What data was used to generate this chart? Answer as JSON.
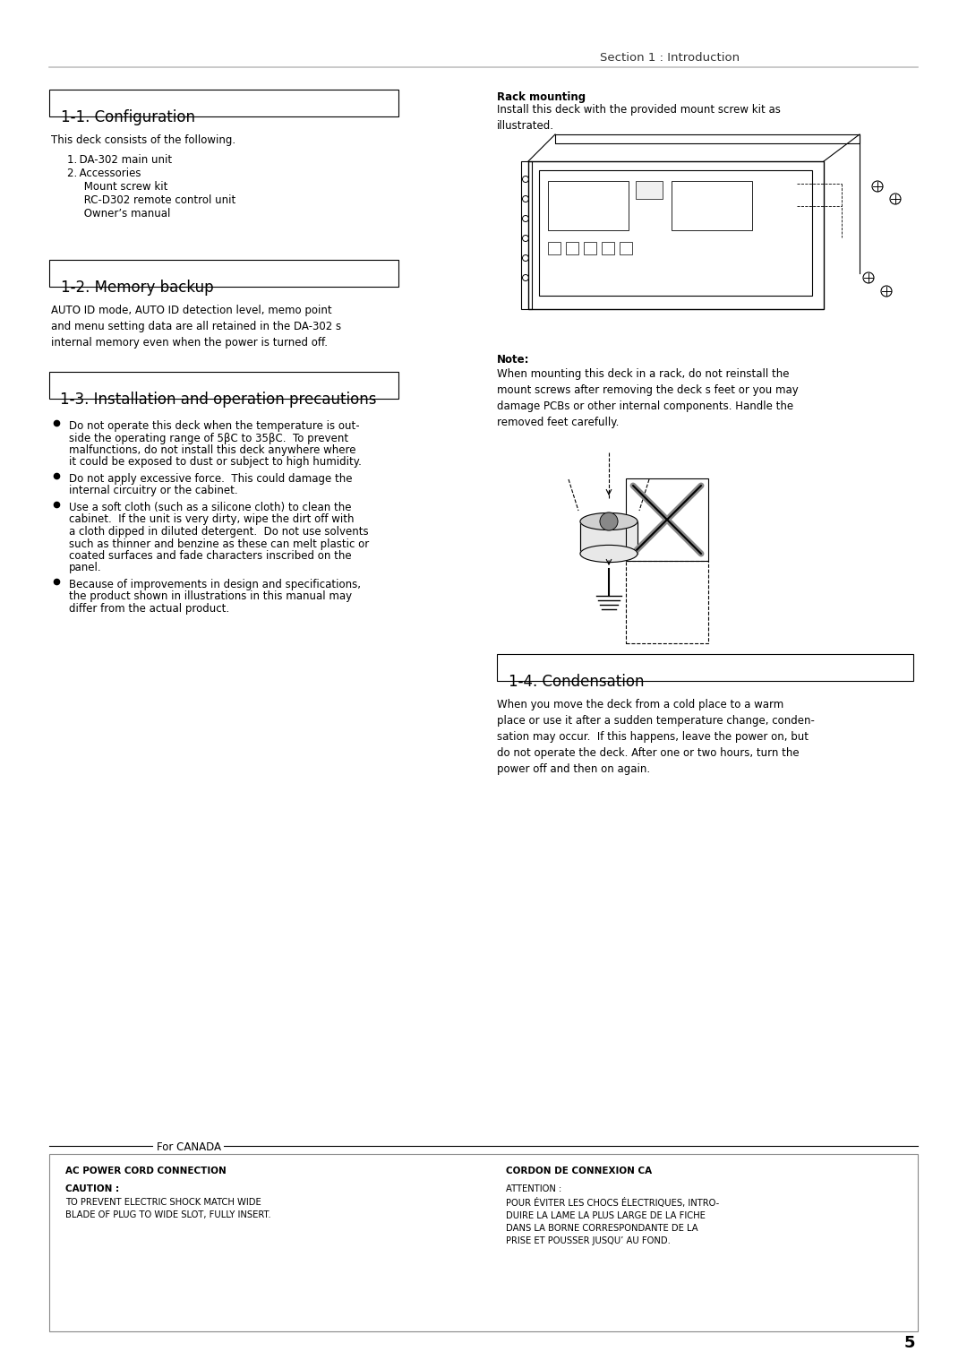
{
  "page_bg": "#ffffff",
  "header_text": "Section 1 : Introduction",
  "header_fontsize": 9.5,
  "page_number": "5",
  "page_number_fontsize": 13,
  "section_title_fontsize": 12,
  "sec1_title": "1-1. Configuration",
  "sec1_body": "This deck consists of the following.",
  "sec1_list": [
    "1. DA-302 main unit",
    "2. Accessories",
    "     Mount screw kit",
    "     RC-D302 remote control unit",
    "     Owner’s manual"
  ],
  "sec2_title": "1-2. Memory backup",
  "sec2_body": "AUTO ID mode, AUTO ID detection level, memo point\nand menu setting data are all retained in the DA-302 s\ninternal memory even when the power is turned off.",
  "sec3_title": "1-3. Installation and operation precautions",
  "sec3_bullets": [
    "Do not operate this deck when the temperature is out-\nside the operating range of 5βC to 35βC.  To prevent\nmalfunctions, do not install this deck anywhere where\nit could be exposed to dust or subject to high humidity.",
    "Do not apply excessive force.  This could damage the\ninternal circuitry or the cabinet.",
    "Use a soft cloth (such as a silicone cloth) to clean the\ncabinet.  If the unit is very dirty, wipe the dirt off with\na cloth dipped in diluted detergent.  Do not use solvents\nsuch as thinner and benzine as these can melt plastic or\ncoated surfaces and fade characters inscribed on the\npanel.",
    "Because of improvements in design and specifications,\nthe product shown in illustrations in this manual may\ndiffer from the actual product."
  ],
  "rack_title": "Rack mounting",
  "rack_body": "Install this deck with the provided mount screw kit as\nillustrated.",
  "rack_note_title": "Note:",
  "rack_note_body": "When mounting this deck in a rack, do not reinstall the\nmount screws after removing the deck s feet or you may\ndamage PCBs or other internal components. Handle the\nremoved feet carefully.",
  "sec4_title": "1-4. Condensation",
  "sec4_body": "When you move the deck from a cold place to a warm\nplace or use it after a sudden temperature change, conden-\nsation may occur.  If this happens, leave the power on, but\ndo not operate the deck. After one or two hours, turn the\npower off and then on again.",
  "canada_title": "For CANADA",
  "canada_left_head": "AC POWER CORD CONNECTION",
  "canada_left_sub": "CAUTION :",
  "canada_left_body": "TO PREVENT ELECTRIC SHOCK MATCH WIDE\nBLADE OF PLUG TO WIDE SLOT, FULLY INSERT.",
  "canada_right_head": "CORDON DE CONNEXION CA",
  "canada_right_sub": "ATTENTION :",
  "canada_right_body": "POUR ÉVITER LES CHOCS ÉLECTRIQUES, INTRO-\nDUIRE LA LAME LA PLUS LARGE DE LA FICHE\nDANS LA BORNE CORRESPONDANTE DE LA\nPRISE ET POUSSER JUSQU’ AU FOND.",
  "body_fontsize": 8.5,
  "small_fontsize": 7.5,
  "label_fontsize": 8,
  "mono_fontsize": 7.5
}
